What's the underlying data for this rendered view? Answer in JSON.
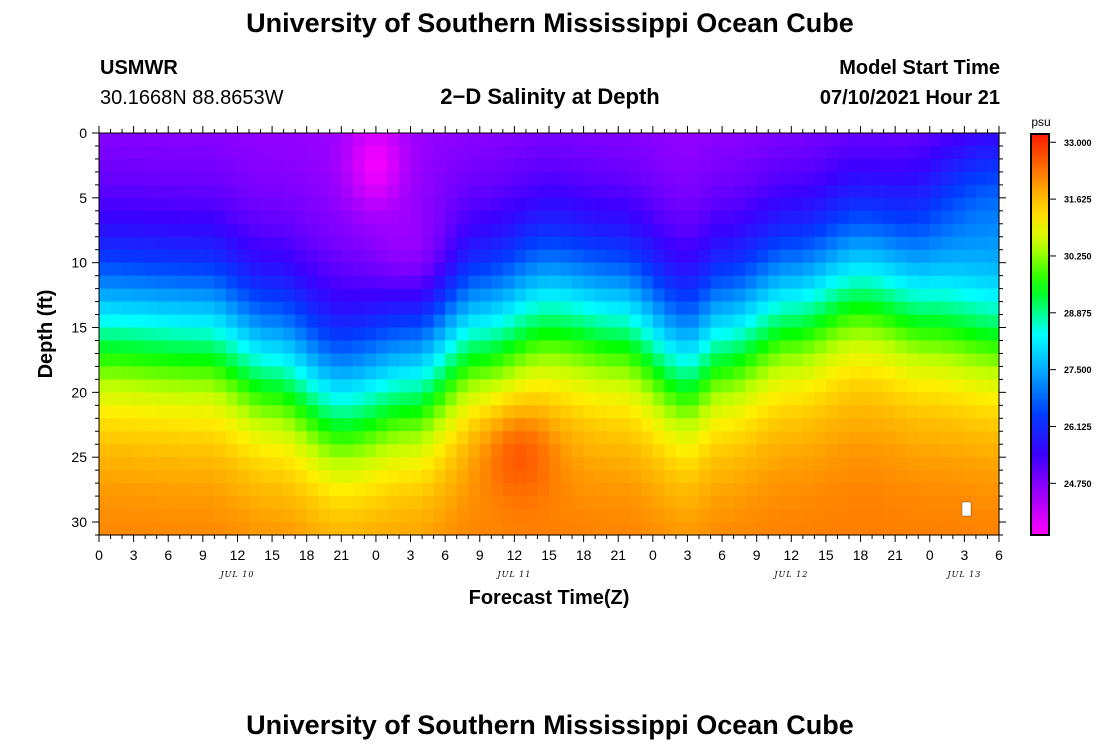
{
  "page": {
    "top_title": "University of Southern Mississippi Ocean Cube",
    "bottom_title": "University of Southern Mississippi Ocean Cube",
    "station": "USMWR",
    "coordinates": "30.1668N  88.8653W",
    "plot_title": "2−D Salinity at Depth",
    "model_label": "Model Start Time",
    "model_time": "07/10/2021 Hour 21"
  },
  "chart_data": {
    "type": "heatmap",
    "title": "2−D Salinity at Depth",
    "xlabel": "Forecast Time(Z)",
    "ylabel": "Depth (ft)",
    "colorbar_label": "psu",
    "x_hours_range": [
      0,
      78
    ],
    "ylim": [
      0,
      31
    ],
    "y_inverted": true,
    "y_ticks": [
      0,
      5,
      10,
      15,
      20,
      25,
      30
    ],
    "x_tick_labels": [
      "0",
      "3",
      "6",
      "9",
      "12",
      "15",
      "18",
      "21",
      "0",
      "3",
      "6",
      "9",
      "12",
      "15",
      "18",
      "21",
      "0",
      "3",
      "6",
      "9",
      "12",
      "15",
      "18",
      "21",
      "0",
      "3",
      "6"
    ],
    "x_tick_hours": [
      0,
      3,
      6,
      9,
      12,
      15,
      18,
      21,
      24,
      27,
      30,
      33,
      36,
      39,
      42,
      45,
      48,
      51,
      54,
      57,
      60,
      63,
      66,
      69,
      72,
      75,
      78
    ],
    "date_labels": [
      {
        "text": "JUL 10",
        "hour": 12
      },
      {
        "text": "JUL 11",
        "hour": 36
      },
      {
        "text": "JUL 12",
        "hour": 60
      },
      {
        "text": "JUL 13",
        "hour": 75
      }
    ],
    "colorbar_ticks": [
      "33.000",
      "31.625",
      "30.250",
      "28.875",
      "27.500",
      "26.125",
      "24.750"
    ],
    "colorbar_range": [
      23.5,
      33.2
    ],
    "halocline_depth_ft": [
      {
        "hour": 0,
        "depth": 14.5
      },
      {
        "hour": 9,
        "depth": 15.0
      },
      {
        "hour": 15,
        "depth": 17.5
      },
      {
        "hour": 21,
        "depth": 20.5
      },
      {
        "hour": 27,
        "depth": 19.0
      },
      {
        "hour": 33,
        "depth": 15.0
      },
      {
        "hour": 39,
        "depth": 13.0
      },
      {
        "hour": 45,
        "depth": 14.0
      },
      {
        "hour": 51,
        "depth": 17.5
      },
      {
        "hour": 54,
        "depth": 15.5
      },
      {
        "hour": 60,
        "depth": 13.0
      },
      {
        "hour": 66,
        "depth": 11.0
      },
      {
        "hour": 72,
        "depth": 12.5
      },
      {
        "hour": 78,
        "depth": 13.5
      }
    ],
    "surface_salinity_psu": 24.5,
    "bottom_salinity_psu": 32.3
  }
}
